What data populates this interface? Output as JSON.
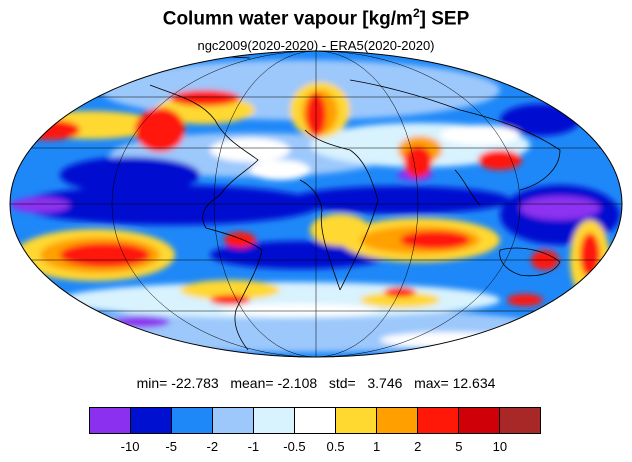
{
  "title": "Column water vapour [kg/m",
  "title_sup": "2",
  "title_suffix": "] SEP",
  "subtitle": "ngc2009(2020-2020) - ERA5(2020-2020)",
  "stats": {
    "min_label": "min=",
    "min": "-22.783",
    "mean_label": "mean=",
    "mean": "-2.108",
    "std_label": "std=",
    "std": "3.746",
    "max_label": "max=",
    "max": "12.634"
  },
  "colorbar": {
    "colors": [
      "#8c30f0",
      "#0010d0",
      "#1e88f8",
      "#9cc8fc",
      "#d8f2fe",
      "#ffffff",
      "#ffd830",
      "#ffa000",
      "#ff1808",
      "#d00008",
      "#a82828"
    ],
    "labels": [
      "-10",
      "-5",
      "-2",
      "-1",
      "-0.5",
      "0.5",
      "1",
      "2",
      "5",
      "10"
    ]
  },
  "map": {
    "projection": "mollweide",
    "background_color": "#ffffff"
  }
}
